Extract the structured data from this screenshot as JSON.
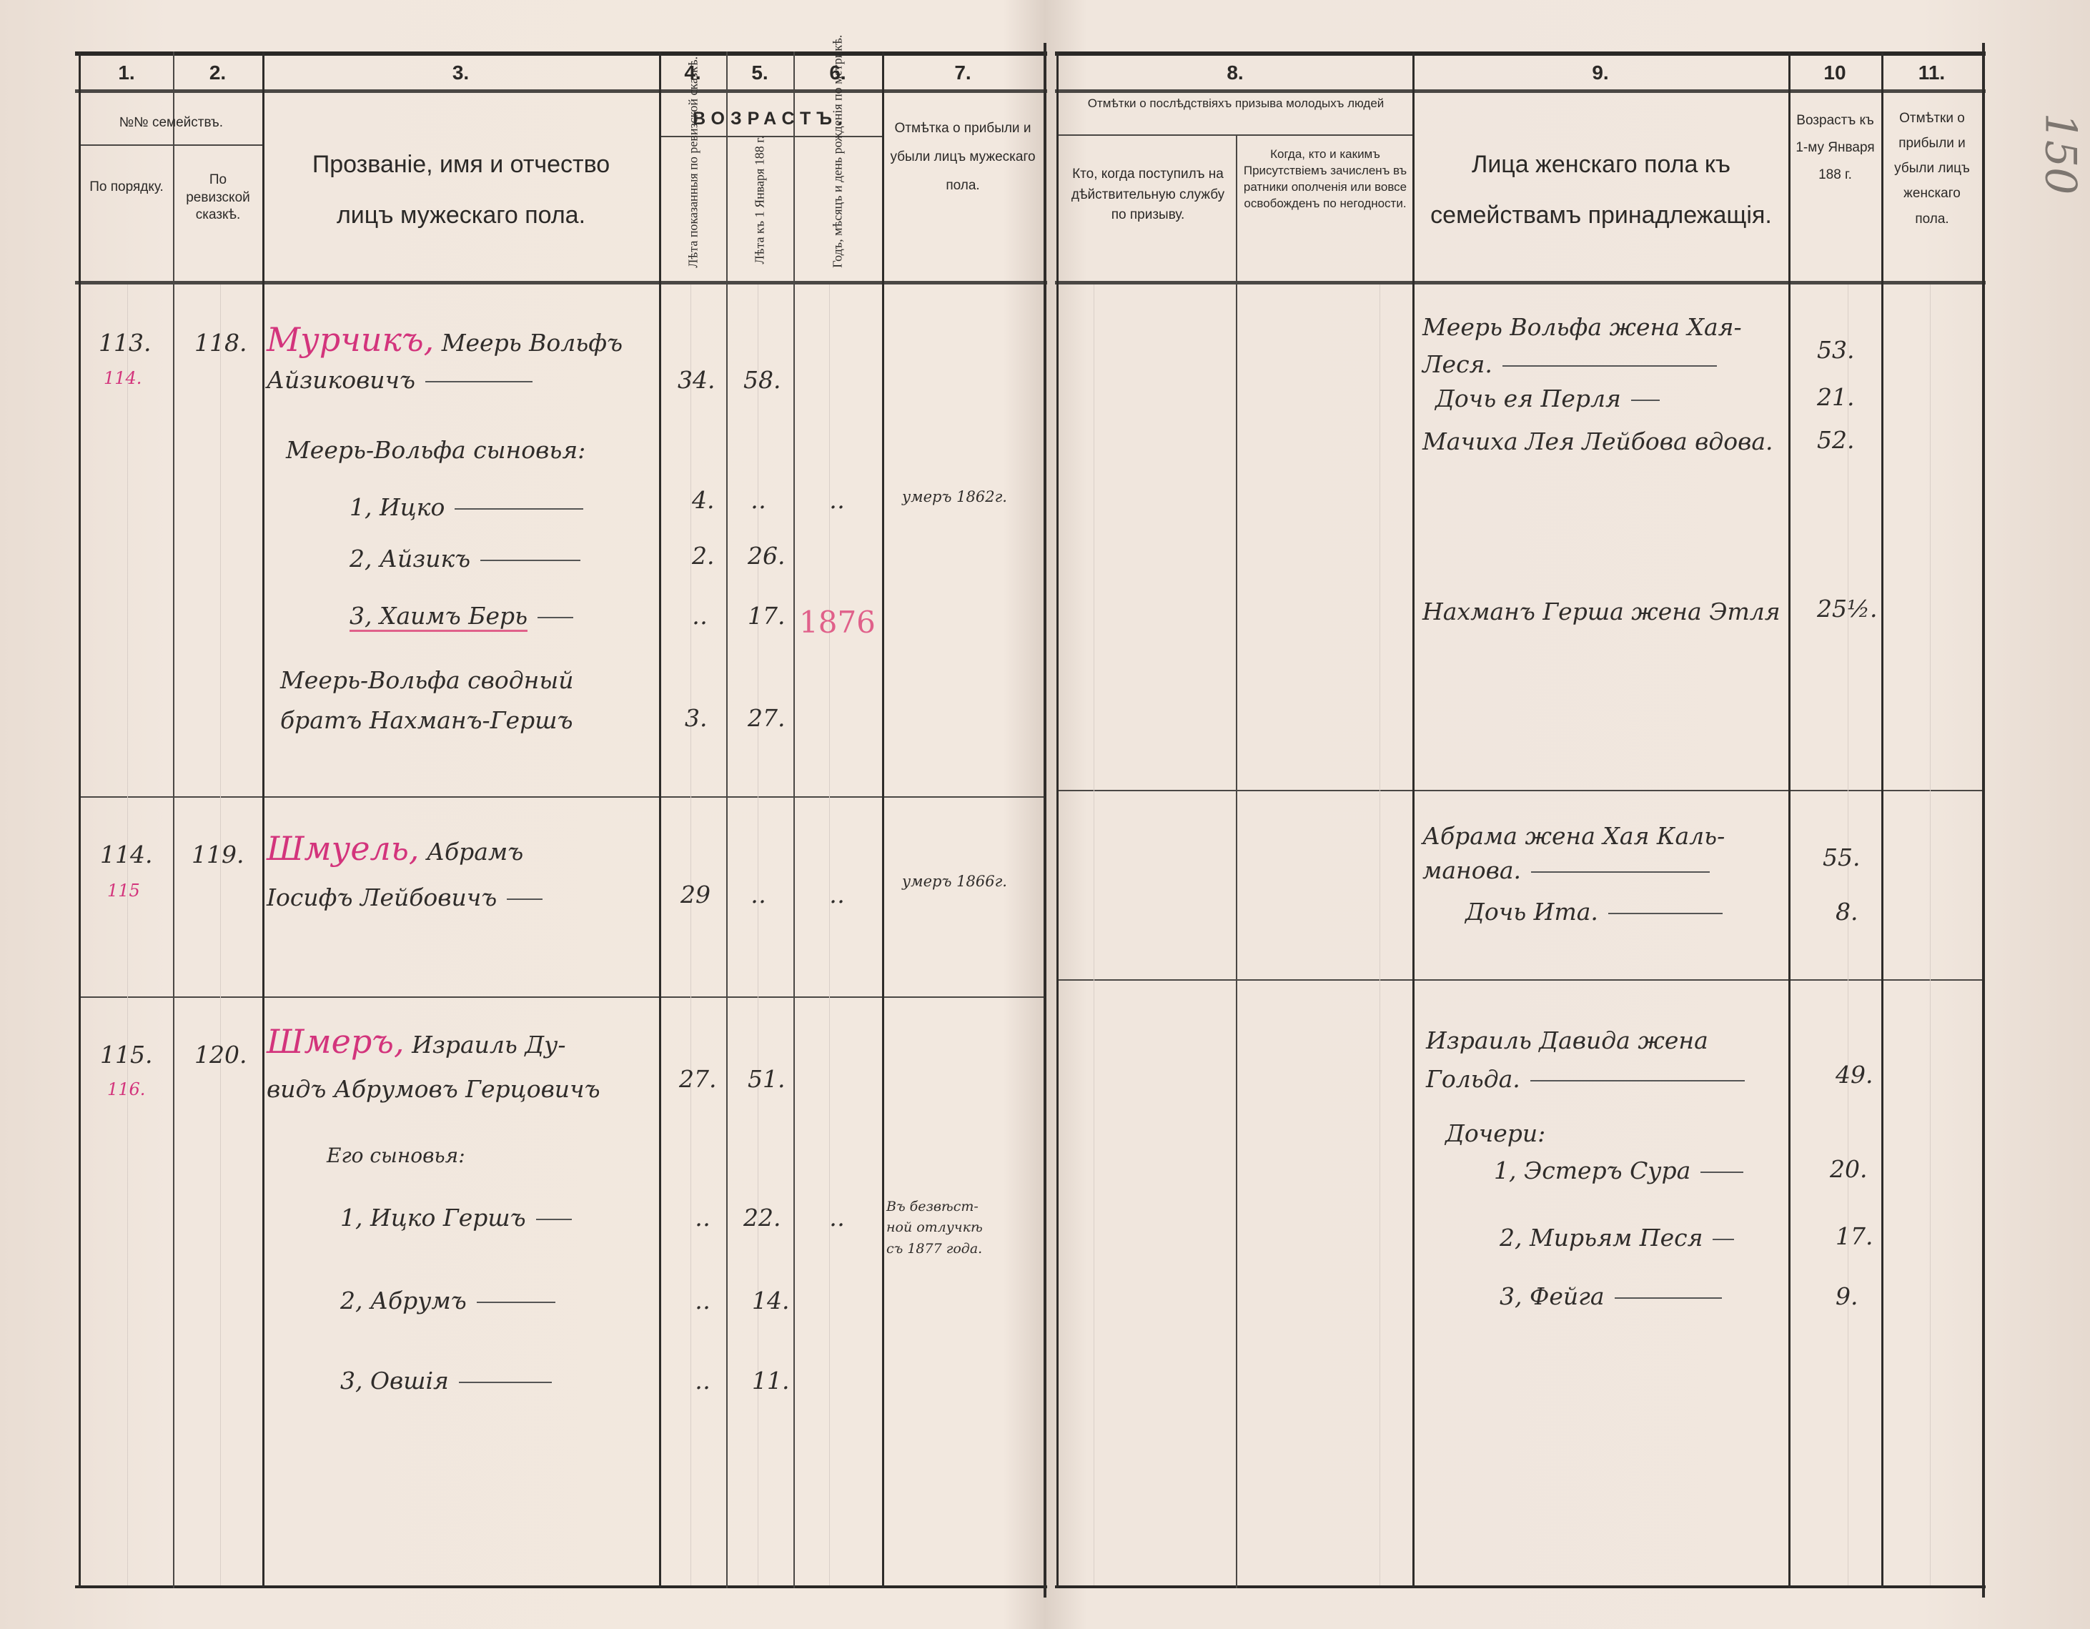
{
  "left_page": {
    "column_numbers": [
      "1.",
      "2.",
      "3.",
      "4.",
      "5.",
      "6.",
      "7."
    ],
    "headers": {
      "families": "№№ семействъ.",
      "by_order": "По порядку.",
      "by_revision": "По ревизской сказкѣ.",
      "name": "Прозваніе, имя и отчество лицъ мужескаго пола.",
      "age": "ВОЗРАСТЪ.",
      "age_revision": "Лѣта показанныя по ревизской сказкѣ.",
      "age_jan": "Лѣта къ 1 Января 188 г.",
      "birth_date": "Годъ, мѣсяцъ и день рожденія по метрикѣ.",
      "arrival_departure": "Отмѣтка о прибыли и убыли лицъ мужескаго пола."
    },
    "families": [
      {
        "order_no": "113.",
        "order_no_correction": "114.",
        "revision_no": "118.",
        "surname": "Мурчикъ,",
        "name_line1": "Меерь Вольфъ",
        "name_line2": "Айзиковичъ",
        "age_revision": "34.",
        "age_jan": "58.",
        "members": [
          {
            "text": "Меерь-Вольфа сыновья:"
          },
          {
            "text": "1, Ицко",
            "age_revision": "4.",
            "age_jan": "‥",
            "birth": "‥",
            "note": "умеръ 1862г."
          },
          {
            "text": "2, Айзикъ",
            "age_revision": "2.",
            "age_jan": "26."
          },
          {
            "text": "3, Хаимъ Берь",
            "age_revision": "‥",
            "age_jan": "17.",
            "birth": "1876"
          },
          {
            "text": "Меерь-Вольфа сводный",
            "text2": "братъ Нахманъ-Гершъ",
            "age_revision": "3.",
            "age_jan": "27."
          }
        ]
      },
      {
        "order_no": "114.",
        "order_no_correction": "115",
        "revision_no": "119.",
        "surname": "Шмуель,",
        "name_line1": "Абрамъ",
        "name_line2": "Іосифъ Лейбовичъ",
        "age_revision": "29",
        "age_jan": "‥",
        "birth": "‥",
        "note": "умеръ 1866г."
      },
      {
        "order_no": "115.",
        "order_no_correction": "116.",
        "revision_no": "120.",
        "surname": "Шмеръ,",
        "name_line1": "Израиль Ду-",
        "name_line2": "видъ Абрумовъ Герцовичъ",
        "age_revision": "27.",
        "age_jan": "51.",
        "members": [
          {
            "text": "Его сыновья:"
          },
          {
            "text": "1, Ицко Гершъ",
            "age_revision": "‥",
            "age_jan": "22.",
            "birth": "‥",
            "note": [
              "Въ безвѣст-",
              "ной отлучкѣ",
              "съ 1877 года."
            ]
          },
          {
            "text": "2, Абрумъ",
            "age_revision": "‥",
            "age_jan": "14."
          },
          {
            "text": "3, Овшія",
            "age_revision": "‥",
            "age_jan": "11."
          }
        ]
      }
    ]
  },
  "right_page": {
    "column_numbers": [
      "8.",
      "9.",
      "10",
      "11."
    ],
    "headers": {
      "conscription": "Отмѣтки о послѣдствіяхъ призыва молодыхъ людей",
      "entered_service": "Кто, когда поступилъ на дѣйствительную службу по призыву.",
      "enlisted_militia": "Когда, кто и какимъ Присутствіемъ зачисленъ въ ратники ополченія или вовсе освобожденъ по негодности.",
      "females": "Лица женскаго пола къ семействамъ принадлежащія.",
      "age_jan": "Возрастъ къ 1-му Января 188 г.",
      "female_marks": "Отмѣтки о прибыли и убыли лицъ женскаго пола."
    },
    "females": [
      {
        "text": "Меерь Вольфа жена Хая-",
        "text2": "Леся.",
        "age": "53."
      },
      {
        "text": "Дочь ея Перля",
        "age": "21."
      },
      {
        "text": "Мачиха Лея Лейбова вдова.",
        "age": "52."
      },
      {
        "text": "Нахманъ Герша жена Этля",
        "age": "25½."
      },
      {
        "text": "Абрама жена Хая Каль-",
        "text2": "манова.",
        "age": "55."
      },
      {
        "text": "Дочь Ита.",
        "age": "8."
      },
      {
        "text": "Израиль Давида жена",
        "text2": "Гольда.",
        "age": "49."
      },
      {
        "text": "Дочери:"
      },
      {
        "text": "1, Эстеръ Сура",
        "age": "20."
      },
      {
        "text": "2, Мирьям Песя",
        "age": "17."
      },
      {
        "text": "3, Фейга",
        "age": "9."
      }
    ],
    "folio_number": "150"
  },
  "colors": {
    "paper": "#f1e7de",
    "ink": "#2f2c2a",
    "red_ink": "#d3347c"
  }
}
